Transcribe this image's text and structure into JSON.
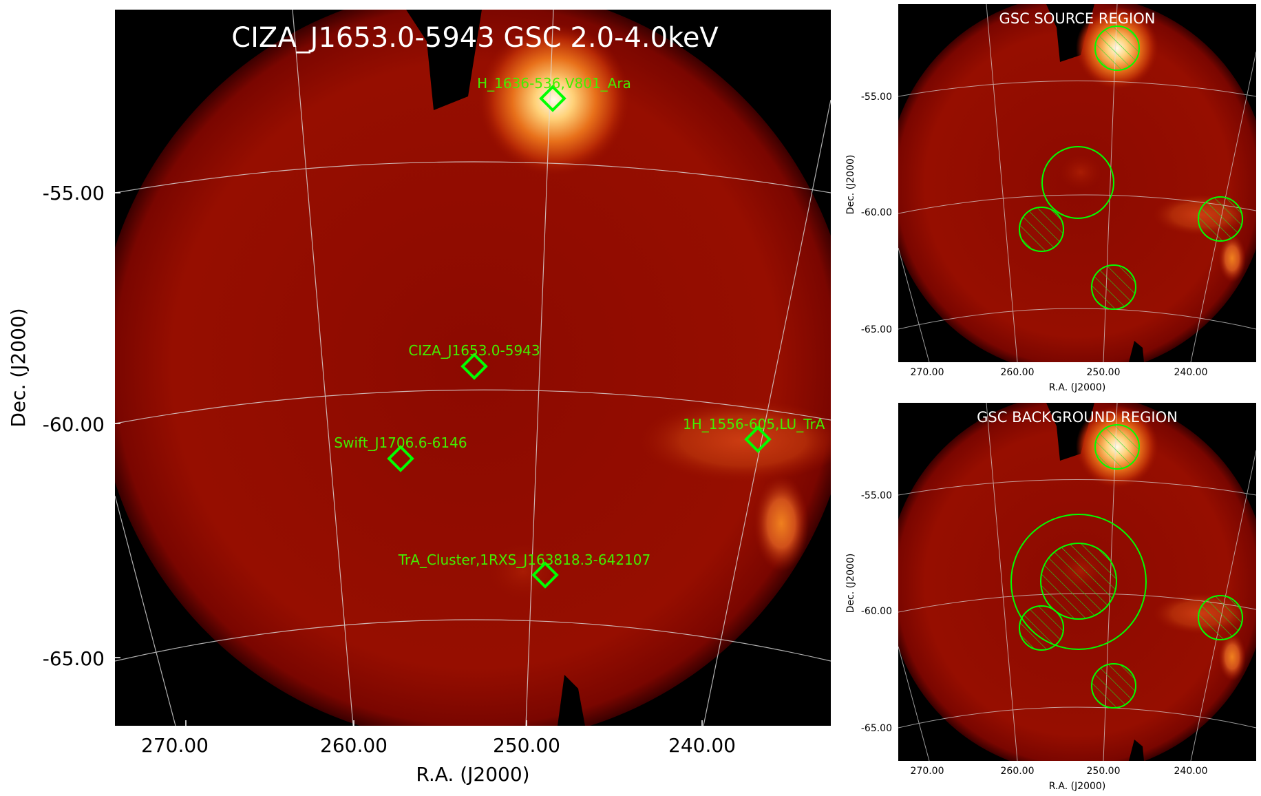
{
  "main_panel": {
    "title": "CIZA_J1653.0-5943 GSC 2.0-4.0keV",
    "xlabel": "R.A. (J2000)",
    "ylabel": "Dec. (J2000)",
    "xticks": [
      "270.00",
      "260.00",
      "250.00",
      "240.00"
    ],
    "yticks": [
      "-55.00",
      "-60.00",
      "-65.00"
    ],
    "sources": [
      {
        "label": "H_1636-536,V801_Ara"
      },
      {
        "label": "CIZA_J1653.0-5943"
      },
      {
        "label": "1H_1556-605,LU_TrA"
      },
      {
        "label": "Swift_J1706.6-6146"
      },
      {
        "label": "TrA_Cluster,1RXS_J163818.3-642107"
      }
    ]
  },
  "source_panel": {
    "title": "GSC SOURCE REGION",
    "xlabel": "R.A. (J2000)",
    "ylabel": "Dec. (J2000)",
    "xticks": [
      "270.00",
      "260.00",
      "250.00",
      "240.00"
    ],
    "yticks": [
      "-55.00",
      "-60.00",
      "-65.00"
    ]
  },
  "background_panel": {
    "title": "GSC BACKGROUND REGION",
    "xlabel": "R.A. (J2000)",
    "ylabel": "Dec. (J2000)",
    "xticks": [
      "270.00",
      "260.00",
      "250.00",
      "240.00"
    ],
    "yticks": [
      "-55.00",
      "-60.00",
      "-65.00"
    ]
  },
  "colors": {
    "marker": "#00ff00",
    "marker_text": "#44ee00",
    "grid": "#dddddd",
    "disk": "#8b0a00",
    "bright_source": "#fff4dc"
  }
}
